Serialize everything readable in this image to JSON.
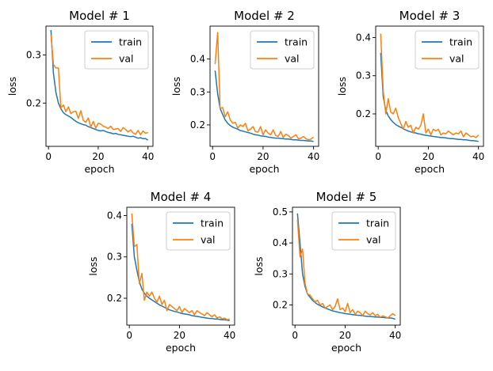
{
  "chart_data": [
    {
      "type": "line",
      "title": "Model # 1",
      "xlabel": "epoch",
      "ylabel": "loss",
      "xlim": [
        -1,
        42
      ],
      "ylim": [
        0.11,
        0.36
      ],
      "xticks": [
        0,
        20,
        40
      ],
      "yticks": [
        0.2,
        0.3
      ],
      "legend": "top-right",
      "series": [
        {
          "name": "train",
          "color": "#1f77b4",
          "x": [
            1,
            2,
            3,
            4,
            5,
            6,
            7,
            8,
            9,
            10,
            11,
            12,
            13,
            14,
            15,
            16,
            17,
            18,
            19,
            20,
            21,
            22,
            23,
            24,
            25,
            26,
            27,
            28,
            29,
            30,
            31,
            32,
            33,
            34,
            35,
            36,
            37,
            38,
            39,
            40
          ],
          "values": [
            0.352,
            0.262,
            0.222,
            0.2,
            0.188,
            0.18,
            0.176,
            0.173,
            0.17,
            0.166,
            0.162,
            0.159,
            0.157,
            0.155,
            0.154,
            0.151,
            0.149,
            0.147,
            0.145,
            0.143,
            0.142,
            0.143,
            0.141,
            0.139,
            0.138,
            0.136,
            0.137,
            0.135,
            0.134,
            0.133,
            0.132,
            0.131,
            0.13,
            0.131,
            0.129,
            0.127,
            0.128,
            0.126,
            0.126,
            0.123
          ]
        },
        {
          "name": "val",
          "color": "#ff7f0e",
          "x": [
            1,
            2,
            3,
            4,
            5,
            6,
            7,
            8,
            9,
            10,
            11,
            12,
            13,
            14,
            15,
            16,
            17,
            18,
            19,
            20,
            21,
            22,
            23,
            24,
            25,
            26,
            27,
            28,
            29,
            30,
            31,
            32,
            33,
            34,
            35,
            36,
            37,
            38,
            39,
            40
          ],
          "values": [
            0.342,
            0.28,
            0.273,
            0.273,
            0.19,
            0.196,
            0.182,
            0.192,
            0.178,
            0.182,
            0.183,
            0.168,
            0.184,
            0.164,
            0.16,
            0.169,
            0.15,
            0.162,
            0.148,
            0.158,
            0.156,
            0.152,
            0.15,
            0.147,
            0.152,
            0.145,
            0.146,
            0.147,
            0.141,
            0.149,
            0.145,
            0.14,
            0.144,
            0.138,
            0.135,
            0.143,
            0.134,
            0.142,
            0.137,
            0.139
          ]
        }
      ]
    },
    {
      "type": "line",
      "title": "Model # 2",
      "xlabel": "epoch",
      "ylabel": "loss",
      "xlim": [
        -1,
        42
      ],
      "ylim": [
        0.135,
        0.5
      ],
      "xticks": [
        0,
        20,
        40
      ],
      "yticks": [
        0.2,
        0.3,
        0.4
      ],
      "legend": "top-right",
      "series": [
        {
          "name": "train",
          "color": "#1f77b4",
          "x": [
            1,
            2,
            3,
            4,
            5,
            6,
            7,
            8,
            9,
            10,
            11,
            12,
            13,
            14,
            15,
            16,
            17,
            18,
            19,
            20,
            21,
            22,
            23,
            24,
            25,
            26,
            27,
            28,
            29,
            30,
            31,
            32,
            33,
            34,
            35,
            36,
            37,
            38,
            39,
            40
          ],
          "values": [
            0.365,
            0.295,
            0.25,
            0.232,
            0.215,
            0.205,
            0.198,
            0.193,
            0.19,
            0.187,
            0.183,
            0.181,
            0.179,
            0.177,
            0.175,
            0.172,
            0.17,
            0.169,
            0.167,
            0.166,
            0.165,
            0.163,
            0.162,
            0.161,
            0.16,
            0.16,
            0.159,
            0.158,
            0.157,
            0.157,
            0.156,
            0.155,
            0.155,
            0.154,
            0.153,
            0.153,
            0.152,
            0.151,
            0.151,
            0.15
          ]
        },
        {
          "name": "val",
          "color": "#ff7f0e",
          "x": [
            1,
            2,
            3,
            4,
            5,
            6,
            7,
            8,
            9,
            10,
            11,
            12,
            13,
            14,
            15,
            16,
            17,
            18,
            19,
            20,
            21,
            22,
            23,
            24,
            25,
            26,
            27,
            28,
            29,
            30,
            31,
            32,
            33,
            34,
            35,
            36,
            37,
            38,
            39,
            40
          ],
          "values": [
            0.385,
            0.48,
            0.25,
            0.253,
            0.225,
            0.24,
            0.215,
            0.205,
            0.208,
            0.19,
            0.2,
            0.195,
            0.205,
            0.182,
            0.187,
            0.195,
            0.18,
            0.178,
            0.195,
            0.17,
            0.185,
            0.175,
            0.17,
            0.185,
            0.168,
            0.165,
            0.18,
            0.162,
            0.172,
            0.168,
            0.16,
            0.165,
            0.17,
            0.158,
            0.16,
            0.165,
            0.158,
            0.155,
            0.157,
            0.163
          ]
        }
      ]
    },
    {
      "type": "line",
      "title": "Model # 3",
      "xlabel": "epoch",
      "ylabel": "loss",
      "xlim": [
        -1,
        42
      ],
      "ylim": [
        0.115,
        0.43
      ],
      "xticks": [
        0,
        20,
        40
      ],
      "yticks": [
        0.2,
        0.3,
        0.4
      ],
      "legend": "top-right",
      "series": [
        {
          "name": "train",
          "color": "#1f77b4",
          "x": [
            1,
            2,
            3,
            4,
            5,
            6,
            7,
            8,
            9,
            10,
            11,
            12,
            13,
            14,
            15,
            16,
            17,
            18,
            19,
            20,
            21,
            22,
            23,
            24,
            25,
            26,
            27,
            28,
            29,
            30,
            31,
            32,
            33,
            34,
            35,
            36,
            37,
            38,
            39,
            40
          ],
          "values": [
            0.36,
            0.245,
            0.21,
            0.195,
            0.185,
            0.178,
            0.172,
            0.168,
            0.165,
            0.161,
            0.158,
            0.155,
            0.153,
            0.151,
            0.15,
            0.148,
            0.147,
            0.145,
            0.144,
            0.143,
            0.142,
            0.141,
            0.14,
            0.139,
            0.138,
            0.138,
            0.137,
            0.136,
            0.135,
            0.135,
            0.134,
            0.133,
            0.133,
            0.132,
            0.132,
            0.131,
            0.13,
            0.13,
            0.129,
            0.128
          ]
        },
        {
          "name": "val",
          "color": "#ff7f0e",
          "x": [
            1,
            2,
            3,
            4,
            5,
            6,
            7,
            8,
            9,
            10,
            11,
            12,
            13,
            14,
            15,
            16,
            17,
            18,
            19,
            20,
            21,
            22,
            23,
            24,
            25,
            26,
            27,
            28,
            29,
            30,
            31,
            32,
            33,
            34,
            35,
            36,
            37,
            38,
            39,
            40
          ],
          "values": [
            0.41,
            0.26,
            0.2,
            0.24,
            0.205,
            0.2,
            0.215,
            0.19,
            0.175,
            0.16,
            0.18,
            0.165,
            0.17,
            0.15,
            0.165,
            0.16,
            0.17,
            0.2,
            0.15,
            0.16,
            0.145,
            0.16,
            0.155,
            0.16,
            0.145,
            0.15,
            0.148,
            0.155,
            0.15,
            0.145,
            0.15,
            0.148,
            0.155,
            0.14,
            0.15,
            0.145,
            0.14,
            0.142,
            0.138,
            0.145
          ]
        }
      ]
    },
    {
      "type": "line",
      "title": "Model # 4",
      "xlabel": "epoch",
      "ylabel": "loss",
      "xlim": [
        -1,
        42
      ],
      "ylim": [
        0.135,
        0.42
      ],
      "xticks": [
        0,
        20,
        40
      ],
      "yticks": [
        0.2,
        0.3,
        0.4
      ],
      "legend": "top-right",
      "series": [
        {
          "name": "train",
          "color": "#1f77b4",
          "x": [
            1,
            2,
            3,
            4,
            5,
            6,
            7,
            8,
            9,
            10,
            11,
            12,
            13,
            14,
            15,
            16,
            17,
            18,
            19,
            20,
            21,
            22,
            23,
            24,
            25,
            26,
            27,
            28,
            29,
            30,
            31,
            32,
            33,
            34,
            35,
            36,
            37,
            38,
            39,
            40
          ],
          "values": [
            0.38,
            0.3,
            0.268,
            0.24,
            0.222,
            0.212,
            0.205,
            0.2,
            0.196,
            0.192,
            0.188,
            0.184,
            0.181,
            0.178,
            0.175,
            0.172,
            0.17,
            0.168,
            0.167,
            0.165,
            0.163,
            0.162,
            0.161,
            0.16,
            0.158,
            0.157,
            0.156,
            0.155,
            0.154,
            0.153,
            0.152,
            0.151,
            0.151,
            0.15,
            0.15,
            0.149,
            0.148,
            0.148,
            0.147,
            0.146
          ]
        },
        {
          "name": "val",
          "color": "#ff7f0e",
          "x": [
            1,
            2,
            3,
            4,
            5,
            6,
            7,
            8,
            9,
            10,
            11,
            12,
            13,
            14,
            15,
            16,
            17,
            18,
            19,
            20,
            21,
            22,
            23,
            24,
            25,
            26,
            27,
            28,
            29,
            30,
            31,
            32,
            33,
            34,
            35,
            36,
            37,
            38,
            39,
            40
          ],
          "values": [
            0.405,
            0.325,
            0.33,
            0.235,
            0.26,
            0.195,
            0.215,
            0.205,
            0.215,
            0.2,
            0.19,
            0.205,
            0.185,
            0.195,
            0.17,
            0.185,
            0.18,
            0.175,
            0.17,
            0.18,
            0.165,
            0.175,
            0.17,
            0.165,
            0.17,
            0.16,
            0.17,
            0.165,
            0.162,
            0.158,
            0.165,
            0.16,
            0.155,
            0.16,
            0.152,
            0.155,
            0.15,
            0.152,
            0.148,
            0.15
          ]
        }
      ]
    },
    {
      "type": "line",
      "title": "Model # 5",
      "xlabel": "epoch",
      "ylabel": "loss",
      "xlim": [
        -1,
        42
      ],
      "ylim": [
        0.135,
        0.515
      ],
      "xticks": [
        0,
        20,
        40
      ],
      "yticks": [
        0.2,
        0.3,
        0.4,
        0.5
      ],
      "legend": "top-right",
      "series": [
        {
          "name": "train",
          "color": "#1f77b4",
          "x": [
            1,
            2,
            3,
            4,
            5,
            6,
            7,
            8,
            9,
            10,
            11,
            12,
            13,
            14,
            15,
            16,
            17,
            18,
            19,
            20,
            21,
            22,
            23,
            24,
            25,
            26,
            27,
            28,
            29,
            30,
            31,
            32,
            33,
            34,
            35,
            36,
            37,
            38,
            39,
            40
          ],
          "values": [
            0.495,
            0.4,
            0.3,
            0.26,
            0.235,
            0.225,
            0.215,
            0.208,
            0.202,
            0.198,
            0.194,
            0.19,
            0.187,
            0.184,
            0.181,
            0.179,
            0.177,
            0.175,
            0.174,
            0.172,
            0.171,
            0.17,
            0.169,
            0.168,
            0.167,
            0.166,
            0.165,
            0.164,
            0.163,
            0.163,
            0.162,
            0.161,
            0.161,
            0.16,
            0.16,
            0.159,
            0.158,
            0.158,
            0.157,
            0.154
          ]
        },
        {
          "name": "val",
          "color": "#ff7f0e",
          "x": [
            1,
            2,
            3,
            4,
            5,
            6,
            7,
            8,
            9,
            10,
            11,
            12,
            13,
            14,
            15,
            16,
            17,
            18,
            19,
            20,
            21,
            22,
            23,
            24,
            25,
            26,
            27,
            28,
            29,
            30,
            31,
            32,
            33,
            34,
            35,
            36,
            37,
            38,
            39,
            40
          ],
          "values": [
            0.475,
            0.355,
            0.38,
            0.27,
            0.235,
            0.232,
            0.22,
            0.21,
            0.215,
            0.2,
            0.205,
            0.19,
            0.195,
            0.2,
            0.185,
            0.195,
            0.22,
            0.185,
            0.19,
            0.178,
            0.205,
            0.175,
            0.185,
            0.17,
            0.18,
            0.175,
            0.165,
            0.18,
            0.172,
            0.168,
            0.175,
            0.165,
            0.17,
            0.16,
            0.165,
            0.162,
            0.158,
            0.165,
            0.172,
            0.165
          ]
        }
      ]
    }
  ]
}
